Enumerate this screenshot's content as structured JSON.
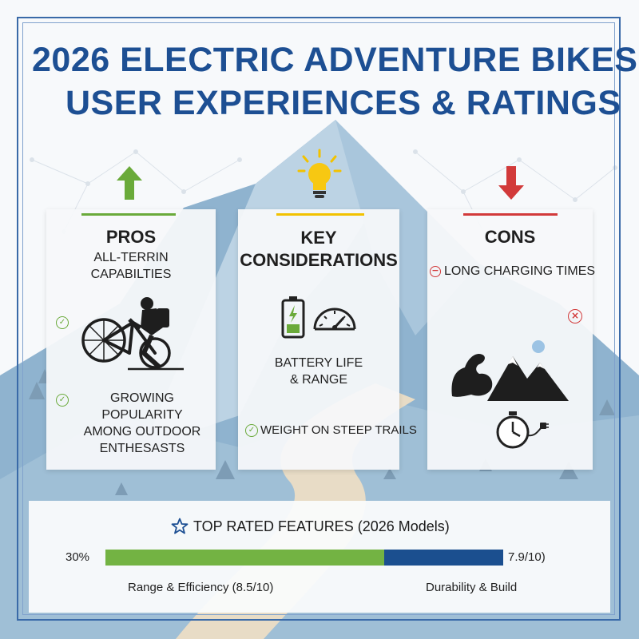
{
  "title": {
    "line1": "2026 ELECTRIC ADVENTURE BIKES:",
    "line2": "USER EXPERIENCES & RATINGS"
  },
  "pros": {
    "heading": "PROS",
    "item1": "ALL-TERRIN\nCAPABILTIES",
    "item2": "GROWING POPULARITY\nAMONG OUTDOOR\nENTHESASTS"
  },
  "considerations": {
    "heading": "KEY\nCONSIDERATIONS",
    "item1": "BATTERY LIFE\n& RANGE",
    "item2": "WEIGHT ON STEEP TRAILS"
  },
  "cons": {
    "heading": "CONS",
    "item1": "LONG CHARGING TIMES"
  },
  "features": {
    "heading": "TOP RATED FEATURES (2026 Models)",
    "left_value": "30%",
    "right_value": "7.9/10)",
    "left_label": "Range & Efficiency (8.5/10)",
    "right_label": "Durability & Build",
    "green_fraction": 0.7
  },
  "colors": {
    "title_blue": "#1d4f93",
    "pros_green": "#6aaa3a",
    "key_yellow": "#f2c200",
    "cons_red": "#d23a3a",
    "bar_green": "#73b343",
    "bar_blue": "#1b4f8f"
  },
  "icons": [
    "up-arrow-icon",
    "lightbulb-icon",
    "down-arrow-icon",
    "check-icon",
    "cyclist-icon",
    "battery-icon",
    "speedometer-icon",
    "muscle-icon",
    "mountain-icon",
    "stopwatch-icon",
    "star-icon",
    "x-circle-icon",
    "minus-circle-icon"
  ]
}
